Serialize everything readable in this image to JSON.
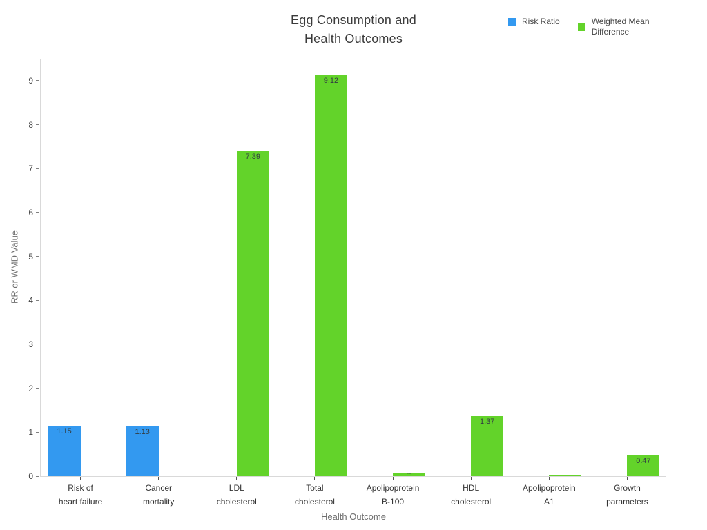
{
  "chart_data": {
    "type": "bar",
    "title_lines": [
      "Egg Consumption and",
      "Health Outcomes"
    ],
    "xlabel": "Health Outcome",
    "ylabel": "RR or WMD Value",
    "ylim": [
      0,
      9.5
    ],
    "yticks": [
      0,
      1,
      2,
      3,
      4,
      5,
      6,
      7,
      8,
      9
    ],
    "grid": false,
    "legend_position": "top-right",
    "categories": [
      {
        "lines": [
          "Risk of",
          "heart failure"
        ]
      },
      {
        "lines": [
          "Cancer",
          "mortality"
        ]
      },
      {
        "lines": [
          "LDL",
          "cholesterol"
        ]
      },
      {
        "lines": [
          "Total",
          "cholesterol"
        ]
      },
      {
        "lines": [
          "Apolipoprotein",
          "B-100"
        ]
      },
      {
        "lines": [
          "HDL",
          "cholesterol"
        ]
      },
      {
        "lines": [
          "Apolipoprotein",
          "A1"
        ]
      },
      {
        "lines": [
          "Growth",
          "parameters"
        ]
      }
    ],
    "series": [
      {
        "name": "Risk Ratio",
        "legend_lines": [
          "Risk Ratio"
        ],
        "color": "#3399F0",
        "values": [
          1.15,
          1.13,
          null,
          null,
          null,
          null,
          null,
          null
        ],
        "labels": [
          "1.15",
          "1.13",
          null,
          null,
          null,
          null,
          null,
          null
        ]
      },
      {
        "name": "Weighted Mean Difference",
        "legend_lines": [
          "Weighted Mean",
          "Difference"
        ],
        "color": "#63D32A",
        "values": [
          null,
          null,
          7.39,
          9.12,
          0.06,
          1.37,
          0.03,
          0.47
        ],
        "labels": [
          null,
          null,
          "7.39",
          "9.12",
          "0.06",
          "1.37",
          "0.03",
          "0.47"
        ]
      }
    ]
  }
}
